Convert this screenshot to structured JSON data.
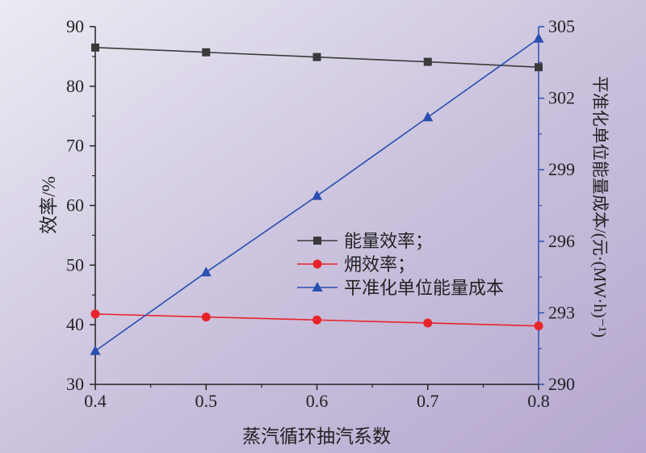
{
  "chart_data": {
    "type": "line",
    "xlabel": "蒸汽循环抽汽系数",
    "ylabel_left": "效率/%",
    "ylabel_right": "平准化单位能量成本/(元·(MW·h)⁻¹)",
    "x": [
      0.4,
      0.5,
      0.6,
      0.7,
      0.8
    ],
    "x_ticks": [
      "0.4",
      "0.5",
      "0.6",
      "0.7",
      "0.8"
    ],
    "xlim": [
      0.4,
      0.8
    ],
    "ylim_left": [
      30,
      90
    ],
    "yticks_left": [
      "30",
      "40",
      "50",
      "60",
      "70",
      "80",
      "90"
    ],
    "ylim_right": [
      290,
      305
    ],
    "yticks_right": [
      "290",
      "293",
      "296",
      "299",
      "302",
      "305"
    ],
    "series": [
      {
        "name": "能量效率；",
        "axis": "left",
        "color": "#3a3a3a",
        "marker": "square",
        "values": [
          86.5,
          85.7,
          84.9,
          84.1,
          83.2
        ]
      },
      {
        "name": "㶲效率；",
        "axis": "left",
        "color": "#e8242b",
        "marker": "circle",
        "values": [
          41.8,
          41.3,
          40.8,
          40.3,
          39.8
        ]
      },
      {
        "name": "平准化单位能量成本",
        "axis": "right",
        "color": "#2a4fb0",
        "marker": "triangle",
        "values": [
          291.4,
          294.7,
          297.9,
          301.2,
          304.5
        ]
      }
    ],
    "legend": "center",
    "grid": false,
    "background_gradient": [
      "#eceaf3",
      "#c9c0dc",
      "#b6a8cf"
    ]
  }
}
